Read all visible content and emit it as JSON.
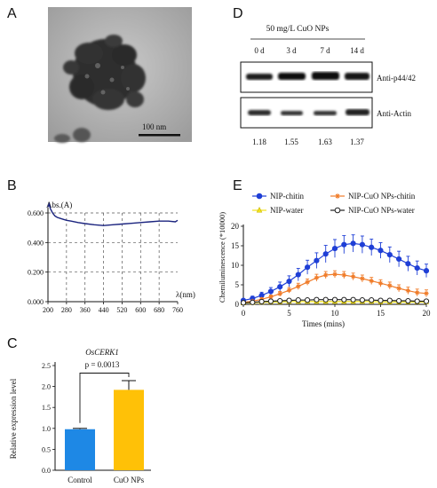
{
  "panels": {
    "a": {
      "letter": "A",
      "scale_bar_label": "100 nm"
    },
    "b": {
      "letter": "B",
      "y_unit_label": "Abs.(A)",
      "x_unit_label": "λ(nm)",
      "grid_note": "dashed grid"
    },
    "c": {
      "letter": "C",
      "title": "OsCERK1",
      "pvalue_label": "p = 0.0013",
      "ylabel": "Relative expression level"
    },
    "d": {
      "letter": "D",
      "treatment_label": "50 mg/L CuO NPs",
      "time_labels": [
        "0 d",
        "3 d",
        "7 d",
        "14 d"
      ],
      "row_labels": [
        "Anti-p44/42",
        "Anti-Actin"
      ],
      "ratios": [
        "1.18",
        "1.55",
        "1.63",
        "1.37"
      ]
    },
    "e": {
      "letter": "E",
      "ylabel": "Chemiluminescence (*10000)",
      "xlabel": "Times (mins)"
    }
  },
  "colors": {
    "spectrum_line": "#1a237e",
    "bar_control": "#1e88e5",
    "bar_cuo": "#ffc107",
    "nip_chitin": "#1f3fd6",
    "nip_cuo_chitin": "#f07c2a",
    "nip_water": "#f2e21b",
    "nip_cuo_water": "#222222"
  },
  "chart_data": [
    {
      "id": "B",
      "type": "line",
      "xlabel": "λ(nm)",
      "ylabel": "Abs.(A)",
      "xlim": [
        200,
        760
      ],
      "ylim": [
        0,
        0.6
      ],
      "x_ticks": [
        200,
        280,
        360,
        440,
        520,
        600,
        680,
        760
      ],
      "y_ticks": [
        0.0,
        0.2,
        0.4,
        0.6
      ],
      "y_tick_labels": [
        "0.000",
        "0.200",
        "0.400",
        "0.600"
      ],
      "x_tick_labels": [
        "200",
        "280",
        "360",
        "440",
        "520",
        "600",
        "680",
        "760"
      ],
      "grid": true,
      "series": [
        {
          "x": [
            200,
            205,
            210,
            220,
            230,
            240,
            260,
            280,
            300,
            330,
            360,
            400,
            440,
            480,
            520,
            560,
            600,
            640,
            680,
            720,
            750,
            760
          ],
          "values": [
            0.64,
            0.66,
            0.63,
            0.6,
            0.58,
            0.57,
            0.56,
            0.55,
            0.545,
            0.535,
            0.528,
            0.52,
            0.515,
            0.52,
            0.525,
            0.53,
            0.535,
            0.54,
            0.545,
            0.545,
            0.54,
            0.55
          ]
        }
      ]
    },
    {
      "id": "C",
      "type": "bar",
      "title": "OsCERK1",
      "ylabel": "Relative expression level",
      "categories": [
        "Control",
        "CuO NPs"
      ],
      "values": [
        0.98,
        1.92
      ],
      "errors": [
        0.02,
        0.22
      ],
      "ylim": [
        0,
        2.5
      ],
      "y_ticks": [
        0.0,
        0.5,
        1.0,
        1.5,
        2.0,
        2.5
      ],
      "y_tick_labels": [
        "0.0",
        "0.5",
        "1.0",
        "1.5",
        "2.0",
        "2.5"
      ],
      "annotation": "p = 0.0013"
    },
    {
      "id": "E",
      "type": "line",
      "xlabel": "Times (mins)",
      "ylabel": "Chemiluminescence (*10000)",
      "xlim": [
        0,
        20
      ],
      "ylim": [
        0,
        20
      ],
      "x_ticks": [
        0,
        5,
        10,
        15,
        20
      ],
      "y_ticks": [
        0,
        5,
        10,
        15,
        20
      ],
      "legend": "top",
      "x": [
        0,
        1,
        2,
        3,
        4,
        5,
        6,
        7,
        8,
        9,
        10,
        11,
        12,
        13,
        14,
        15,
        16,
        17,
        18,
        19,
        20
      ],
      "series": [
        {
          "name": "NIP-chitin",
          "values": [
            1.0,
            1.5,
            2.3,
            3.3,
            4.5,
            5.9,
            7.6,
            9.5,
            11.2,
            12.9,
            14.3,
            15.3,
            15.6,
            15.3,
            14.6,
            13.8,
            12.7,
            11.6,
            10.4,
            9.3,
            8.6
          ],
          "errors": [
            0.4,
            0.6,
            0.8,
            1.0,
            1.2,
            1.4,
            1.6,
            1.8,
            2.0,
            2.2,
            2.3,
            2.3,
            2.2,
            2.2,
            2.1,
            2.0,
            2.0,
            2.0,
            1.9,
            1.8,
            1.7
          ]
        },
        {
          "name": "NIP-CuO NPs-chitin",
          "values": [
            0.5,
            0.8,
            1.3,
            1.9,
            2.7,
            3.6,
            4.6,
            5.7,
            6.8,
            7.5,
            7.7,
            7.5,
            7.1,
            6.6,
            6.0,
            5.4,
            4.8,
            4.1,
            3.5,
            3.0,
            2.8
          ],
          "errors": [
            0.2,
            0.3,
            0.4,
            0.5,
            0.6,
            0.7,
            0.8,
            0.8,
            0.9,
            0.9,
            0.9,
            0.9,
            0.9,
            0.9,
            0.9,
            0.9,
            0.9,
            0.9,
            0.9,
            0.9,
            0.9
          ]
        },
        {
          "name": "NIP-water",
          "values": [
            0.3,
            0.4,
            0.5,
            0.6,
            0.6,
            0.7,
            0.7,
            0.7,
            0.7,
            0.7,
            0.7,
            0.7,
            0.7,
            0.7,
            0.7,
            0.6,
            0.6,
            0.6,
            0.6,
            0.6,
            0.6
          ],
          "errors": [
            0.1,
            0.1,
            0.1,
            0.1,
            0.1,
            0.1,
            0.1,
            0.1,
            0.1,
            0.1,
            0.1,
            0.1,
            0.1,
            0.1,
            0.1,
            0.1,
            0.1,
            0.1,
            0.1,
            0.1,
            0.1
          ]
        },
        {
          "name": "NIP-CuO NPs-water",
          "values": [
            0.4,
            0.5,
            0.7,
            0.8,
            0.9,
            1.0,
            1.1,
            1.1,
            1.2,
            1.2,
            1.2,
            1.2,
            1.2,
            1.1,
            1.1,
            1.0,
            1.0,
            0.9,
            0.9,
            0.8,
            0.8
          ],
          "errors": [
            0.1,
            0.1,
            0.1,
            0.1,
            0.1,
            0.1,
            0.1,
            0.1,
            0.1,
            0.1,
            0.1,
            0.1,
            0.1,
            0.1,
            0.1,
            0.1,
            0.1,
            0.1,
            0.1,
            0.1,
            0.1
          ]
        }
      ]
    }
  ]
}
